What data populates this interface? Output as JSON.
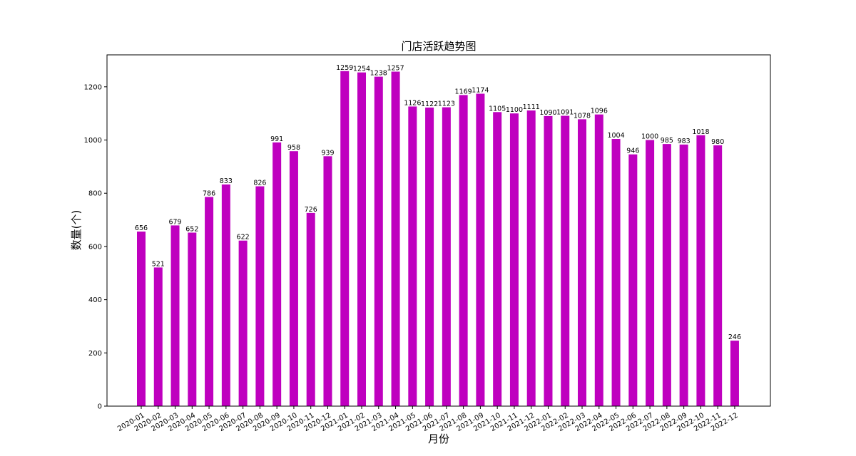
{
  "chart_data": {
    "type": "bar",
    "title": "门店活跃趋势图",
    "xlabel": "月份",
    "ylabel": "数量(个)",
    "ylim": [
      0,
      1320
    ],
    "yticks": [
      0,
      200,
      400,
      600,
      800,
      1000,
      1200
    ],
    "grid": false,
    "bar_color": "#bf00bf",
    "categories": [
      "2020-01",
      "2020-02",
      "2020-03",
      "2020-04",
      "2020-05",
      "2020-06",
      "2020-07",
      "2020-08",
      "2020-09",
      "2020-10",
      "2020-11",
      "2020-12",
      "2021-01",
      "2021-02",
      "2021-03",
      "2021-04",
      "2021-05",
      "2021-06",
      "2021-07",
      "2021-08",
      "2021-09",
      "2021-10",
      "2021-11",
      "2021-12",
      "2022-01",
      "2022-02",
      "2022-03",
      "2022-04",
      "2022-05",
      "2022-06",
      "2022-07",
      "2022-08",
      "2022-09",
      "2022-10",
      "2022-11",
      "2022-12"
    ],
    "values": [
      656,
      521,
      679,
      652,
      786,
      833,
      622,
      826,
      991,
      958,
      726,
      939,
      1259,
      1254,
      1238,
      1257,
      1126,
      1122,
      1123,
      1169,
      1174,
      1105,
      1100,
      1111,
      1090,
      1091,
      1078,
      1096,
      1004,
      946,
      1000,
      985,
      983,
      1018,
      980,
      246
    ]
  }
}
